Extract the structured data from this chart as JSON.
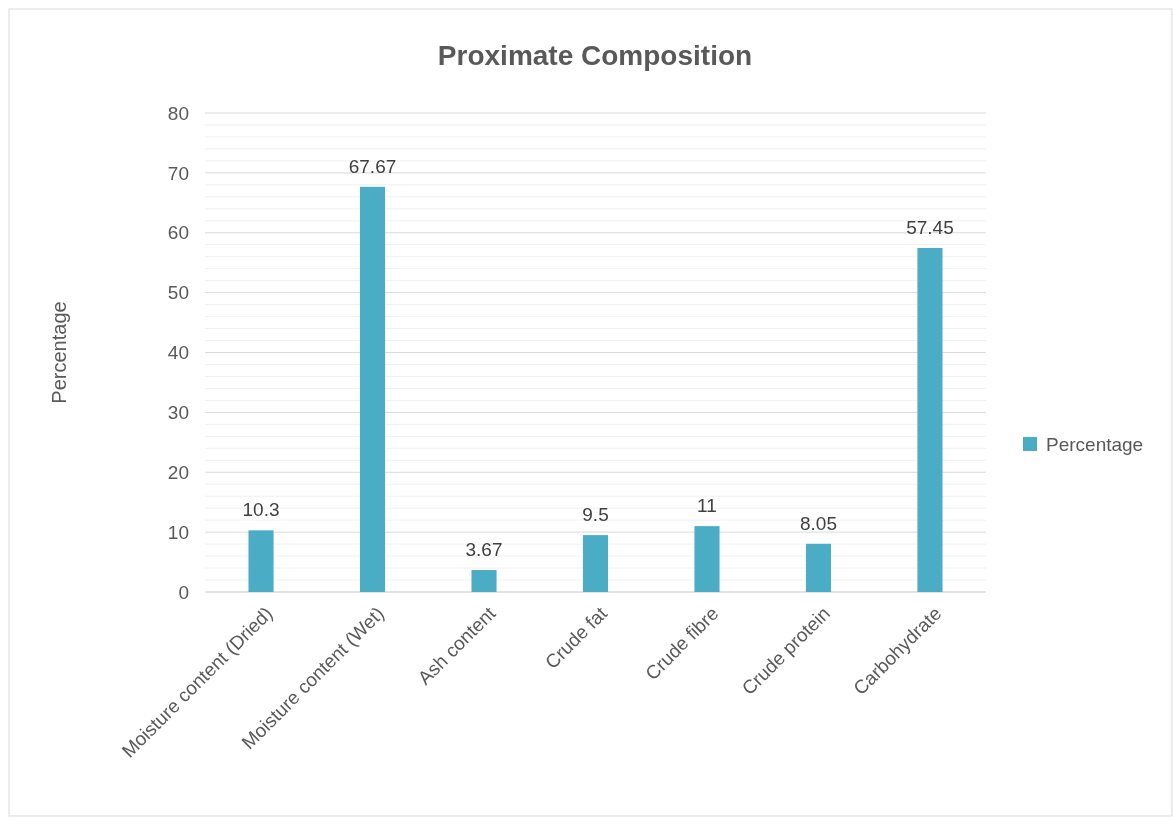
{
  "chart_data": {
    "type": "bar",
    "title": "Proximate Composition",
    "ylabel": "Percentage",
    "categories": [
      "Moisture content (Dried)",
      "Moisture content (Wet)",
      "Ash content",
      "Crude fat",
      "Crude fibre",
      "Crude protein",
      "Carbohydrate"
    ],
    "series": [
      {
        "name": "Percentage",
        "color": "#4bacc6",
        "values": [
          10.3,
          67.67,
          3.67,
          9.5,
          11,
          8.05,
          57.45
        ]
      }
    ],
    "data_labels": true,
    "ylim": [
      0,
      80
    ],
    "yticks": [
      0,
      {
        "value": 2,
        "label": null
      },
      {
        "value": 4,
        "label": null
      },
      {
        "value": 6,
        "label": null
      },
      {
        "value": 8,
        "label": null
      },
      10,
      {
        "value": 12,
        "label": null
      },
      {
        "value": 14,
        "label": null
      },
      {
        "value": 16,
        "label": null
      },
      {
        "value": 18,
        "label": null
      },
      20,
      {
        "value": 22,
        "label": null
      },
      {
        "value": 24,
        "label": null
      },
      {
        "value": 26,
        "label": null
      },
      {
        "value": 28,
        "label": null
      },
      30,
      {
        "value": 32,
        "label": null
      },
      {
        "value": 34,
        "label": null
      },
      {
        "value": 36,
        "label": null
      },
      {
        "value": 38,
        "label": null
      },
      40,
      {
        "value": 42,
        "label": null
      },
      {
        "value": 44,
        "label": null
      },
      {
        "value": 46,
        "label": null
      },
      {
        "value": 48,
        "label": null
      },
      50,
      {
        "value": 52,
        "label": null
      },
      {
        "value": 54,
        "label": null
      },
      {
        "value": 56,
        "label": null
      },
      {
        "value": 58,
        "label": null
      },
      60,
      {
        "value": 62,
        "label": null
      },
      {
        "value": 64,
        "label": null
      },
      {
        "value": 66,
        "label": null
      },
      {
        "value": 68,
        "label": null
      },
      70,
      {
        "value": 72,
        "label": null
      },
      {
        "value": 74,
        "label": null
      },
      {
        "value": 76,
        "label": null
      },
      {
        "value": 78,
        "label": null
      },
      80
    ],
    "grid": true,
    "legend": "right"
  }
}
